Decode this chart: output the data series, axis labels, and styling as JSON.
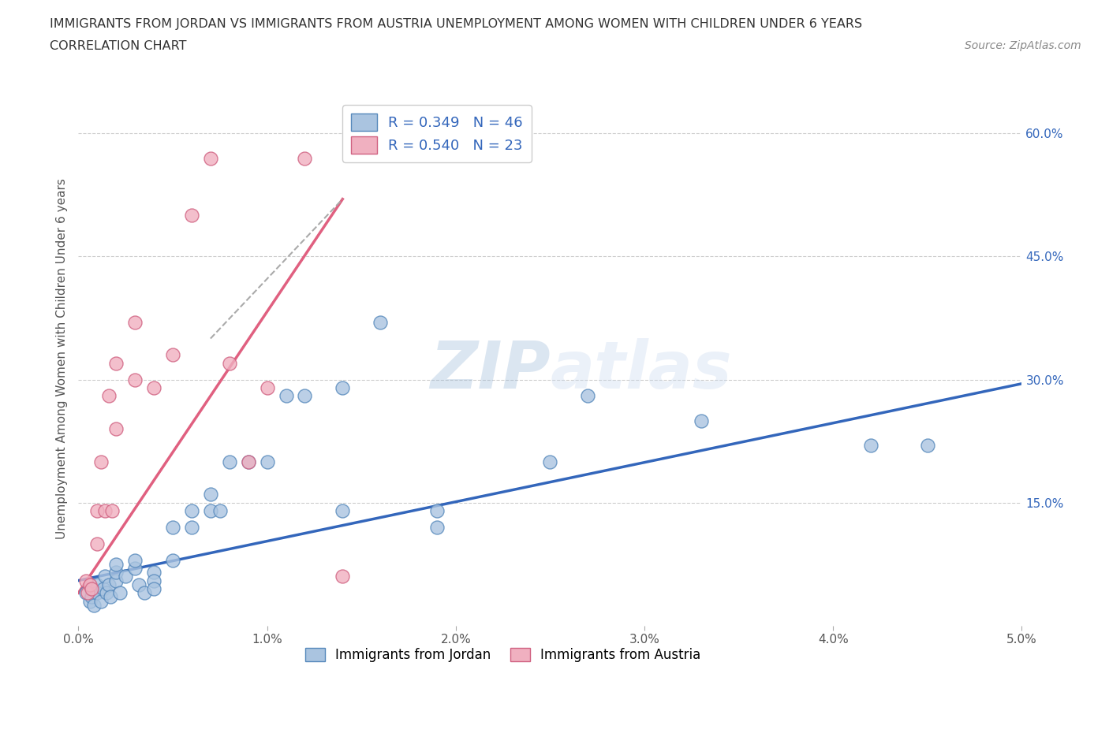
{
  "title_line1": "IMMIGRANTS FROM JORDAN VS IMMIGRANTS FROM AUSTRIA UNEMPLOYMENT AMONG WOMEN WITH CHILDREN UNDER 6 YEARS",
  "title_line2": "CORRELATION CHART",
  "source_text": "Source: ZipAtlas.com",
  "ylabel": "Unemployment Among Women with Children Under 6 years",
  "xlim": [
    0.0,
    0.05
  ],
  "ylim": [
    0.0,
    0.65
  ],
  "xtick_labels": [
    "0.0%",
    "1.0%",
    "2.0%",
    "3.0%",
    "4.0%",
    "5.0%"
  ],
  "xtick_values": [
    0.0,
    0.01,
    0.02,
    0.03,
    0.04,
    0.05
  ],
  "ytick_labels": [
    "15.0%",
    "30.0%",
    "45.0%",
    "60.0%"
  ],
  "ytick_values": [
    0.15,
    0.3,
    0.45,
    0.6
  ],
  "jordan_color": "#aac4e0",
  "jordan_edge": "#5588bb",
  "austria_color": "#f0b0c0",
  "austria_edge": "#d06080",
  "jordan_line_color": "#3366bb",
  "austria_line_color": "#e06080",
  "watermark_color": "#c8d8ee",
  "legend_label1": "R = 0.349   N = 46",
  "legend_label2": "R = 0.540   N = 23",
  "background_color": "#ffffff",
  "grid_color": "#cccccc",
  "jordan_x": [
    0.0004,
    0.0006,
    0.0007,
    0.0008,
    0.001,
    0.001,
    0.0012,
    0.0013,
    0.0014,
    0.0015,
    0.0016,
    0.0017,
    0.002,
    0.002,
    0.002,
    0.0022,
    0.0025,
    0.003,
    0.003,
    0.0032,
    0.0035,
    0.004,
    0.004,
    0.004,
    0.005,
    0.005,
    0.006,
    0.006,
    0.007,
    0.007,
    0.0075,
    0.008,
    0.009,
    0.01,
    0.011,
    0.012,
    0.014,
    0.014,
    0.016,
    0.019,
    0.019,
    0.025,
    0.027,
    0.033,
    0.042,
    0.045
  ],
  "jordan_y": [
    0.04,
    0.03,
    0.035,
    0.025,
    0.05,
    0.04,
    0.03,
    0.045,
    0.06,
    0.04,
    0.05,
    0.035,
    0.055,
    0.065,
    0.075,
    0.04,
    0.06,
    0.07,
    0.08,
    0.05,
    0.04,
    0.065,
    0.055,
    0.045,
    0.12,
    0.08,
    0.12,
    0.14,
    0.14,
    0.16,
    0.14,
    0.2,
    0.2,
    0.2,
    0.28,
    0.28,
    0.29,
    0.14,
    0.37,
    0.14,
    0.12,
    0.2,
    0.28,
    0.25,
    0.22,
    0.22
  ],
  "austria_x": [
    0.0004,
    0.0005,
    0.0006,
    0.0007,
    0.001,
    0.001,
    0.0012,
    0.0014,
    0.0016,
    0.0018,
    0.002,
    0.002,
    0.003,
    0.003,
    0.004,
    0.005,
    0.006,
    0.007,
    0.008,
    0.009,
    0.01,
    0.012,
    0.014
  ],
  "austria_y": [
    0.055,
    0.04,
    0.05,
    0.045,
    0.1,
    0.14,
    0.2,
    0.14,
    0.28,
    0.14,
    0.24,
    0.32,
    0.3,
    0.37,
    0.29,
    0.33,
    0.5,
    0.57,
    0.32,
    0.2,
    0.29,
    0.57,
    0.06
  ],
  "jordan_line_x": [
    0.0,
    0.05
  ],
  "jordan_line_y": [
    0.055,
    0.295
  ],
  "austria_line_x": [
    0.0,
    0.014
  ],
  "austria_line_y": [
    0.04,
    0.52
  ]
}
